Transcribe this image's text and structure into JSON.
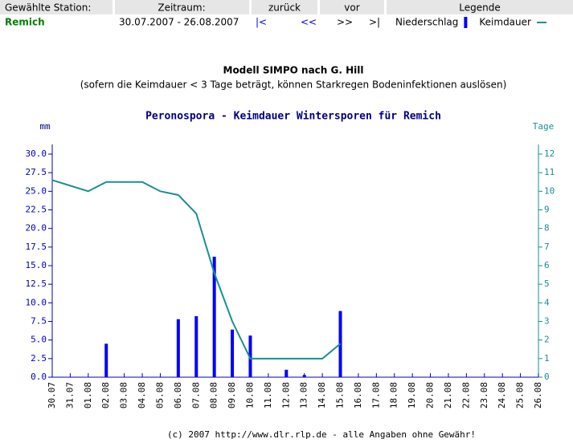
{
  "header": {
    "station_label": "Gewählte Station:",
    "period_label": "Zeitraum:",
    "back_label": "zurück",
    "forward_label": "vor",
    "legend_label": "Legende",
    "station": "Remich",
    "period": "30.07.2007 - 26.08.2007",
    "first": "|<",
    "back": "<<",
    "forward": ">>",
    "last": ">|"
  },
  "model_title": "Modell SIMPO nach G. Hill",
  "model_note": "(sofern die Keimdauer < 3 Tage beträgt, können Starkregen Bodeninfektionen auslösen)",
  "chart_data": {
    "type": "bar-line",
    "title": "Peronospora - Keimdauer Wintersporen für Remich",
    "ylabel": "mm",
    "y2label": "Tage",
    "categories": [
      "30.07",
      "31.07",
      "01.08",
      "02.08",
      "03.08",
      "04.08",
      "05.08",
      "06.08",
      "07.08",
      "08.08",
      "09.08",
      "10.08",
      "11.08",
      "12.08",
      "13.08",
      "14.08",
      "15.08",
      "16.08",
      "17.08",
      "18.08",
      "19.08",
      "20.08",
      "21.08",
      "22.08",
      "23.08",
      "24.08",
      "25.08",
      "26.08"
    ],
    "series": [
      {
        "name": "Niederschlag",
        "type": "bar",
        "color": "#0000ff",
        "values": [
          0,
          0,
          0,
          4.5,
          0,
          0,
          0,
          7.8,
          8.2,
          16.2,
          6.4,
          5.6,
          0,
          1.0,
          0.3,
          0,
          8.9,
          null,
          null,
          null,
          null,
          null,
          null,
          null,
          null,
          null,
          null,
          null
        ]
      },
      {
        "name": "Keimdauer",
        "type": "line",
        "axis": "y2",
        "color": "#1a8f8f",
        "values": [
          10.6,
          10.3,
          10,
          10.5,
          10.5,
          10.5,
          10,
          9.8,
          8.8,
          5.6,
          3,
          1,
          1,
          1,
          1,
          1,
          1.8,
          null,
          null,
          null,
          null,
          null,
          null,
          null,
          null,
          null,
          null,
          null
        ]
      }
    ],
    "ylim": [
      0,
      30
    ],
    "yticks": [
      {
        "value": 0,
        "label": "0.0"
      },
      2.5,
      {
        "value": 5,
        "label": "5.0"
      },
      7.5,
      {
        "value": 10,
        "label": "10.0"
      },
      12.5,
      {
        "value": 15,
        "label": "15.0"
      },
      17.5,
      {
        "value": 20,
        "label": "20.0"
      },
      22.5,
      {
        "value": 25,
        "label": "25.0"
      },
      27.5,
      {
        "value": 30,
        "label": "30.0"
      }
    ],
    "y2lim": [
      0,
      12
    ],
    "y2ticks": [
      0,
      1,
      2,
      3,
      4,
      5,
      6,
      7,
      8,
      9,
      10,
      11,
      12
    ],
    "grid": false
  },
  "footer": "(c) 2007 http://www.dlr.rlp.de - alle Angaben ohne Gewähr!"
}
